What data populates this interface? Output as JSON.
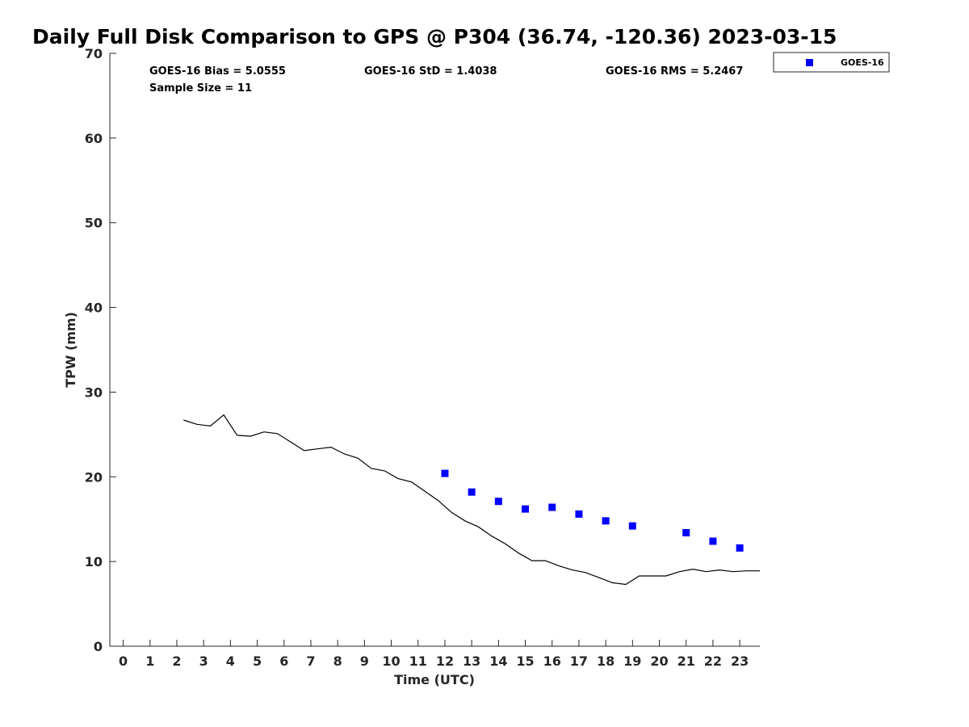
{
  "chart_data": {
    "type": "scatter",
    "title": "Daily Full Disk Comparison to GPS @ P304 (36.74, -120.36) 2023-03-15",
    "xlabel": "Time (UTC)",
    "ylabel": "TPW (mm)",
    "xlim": [
      -0.5,
      23.75
    ],
    "ylim": [
      0,
      70
    ],
    "xticks": [
      0,
      1,
      2,
      3,
      4,
      5,
      6,
      7,
      8,
      9,
      10,
      11,
      12,
      13,
      14,
      15,
      16,
      17,
      18,
      19,
      20,
      21,
      22,
      23
    ],
    "yticks": [
      0,
      10,
      20,
      30,
      40,
      50,
      60,
      70
    ],
    "grid": false,
    "legend_position": "top-right",
    "stats": {
      "bias": "GOES-16 Bias = 5.0555",
      "std": "GOES-16 StD = 1.4038",
      "rms": "GOES-16 RMS = 5.2467",
      "sample": "Sample Size = 11"
    },
    "series": [
      {
        "name": "GOES-16",
        "kind": "scatter",
        "color": "#0000ff",
        "x": [
          12,
          13,
          14,
          15,
          16,
          17,
          18,
          19,
          21,
          22,
          23
        ],
        "y": [
          20.4,
          18.2,
          17.1,
          16.2,
          16.4,
          15.6,
          14.8,
          14.2,
          13.4,
          12.4,
          11.6
        ]
      },
      {
        "kind": "line",
        "color": "#000000",
        "x": [
          2.25,
          2.75,
          3.25,
          3.75,
          4.25,
          4.75,
          5.25,
          5.75,
          6.25,
          6.75,
          7.25,
          7.75,
          8.25,
          8.75,
          9.25,
          9.75,
          10.25,
          10.75,
          11.25,
          11.75,
          12.25,
          12.75,
          13.25,
          13.75,
          14.25,
          14.75,
          15.25,
          15.75,
          16.25,
          16.75,
          17.25,
          17.75,
          18.25,
          18.75,
          19.25,
          19.75,
          20.25,
          20.75,
          21.25,
          21.75,
          22.25,
          22.75,
          23.25,
          23.75
        ],
        "y": [
          26.7,
          26.2,
          26.0,
          27.3,
          24.9,
          24.8,
          25.3,
          25.1,
          24.1,
          23.1,
          23.3,
          23.5,
          22.7,
          22.2,
          21.0,
          20.7,
          19.8,
          19.4,
          18.3,
          17.2,
          15.8,
          14.8,
          14.1,
          13.0,
          12.1,
          11.0,
          10.1,
          10.1,
          9.5,
          9.0,
          8.7,
          8.1,
          7.5,
          7.3,
          8.3,
          8.3,
          8.3,
          8.8,
          9.1,
          8.8,
          9.0,
          8.8,
          8.9,
          8.9
        ]
      }
    ]
  }
}
